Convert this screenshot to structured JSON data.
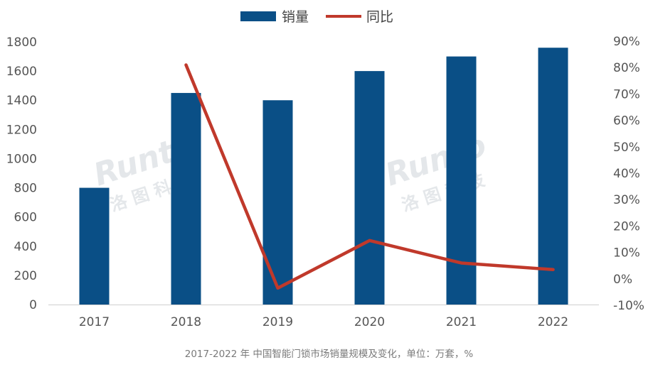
{
  "chart_data": {
    "type": "bar",
    "categories": [
      "2017",
      "2018",
      "2019",
      "2020",
      "2021",
      "2022"
    ],
    "series": [
      {
        "name": "销量",
        "type": "bar",
        "axis": "left",
        "color": "#0a4f86",
        "values": [
          800,
          1450,
          1400,
          1600,
          1700,
          1760
        ]
      },
      {
        "name": "同比",
        "type": "line",
        "axis": "right",
        "color": "#c0392b",
        "values": [
          null,
          81,
          -3.5,
          14.5,
          6,
          3.5
        ]
      }
    ],
    "y_left": {
      "min": 0,
      "max": 1800,
      "step": 200,
      "ticks": [
        "0",
        "200",
        "400",
        "600",
        "800",
        "1000",
        "1200",
        "1400",
        "1600",
        "1800"
      ]
    },
    "y_right": {
      "min": -10,
      "max": 90,
      "step": 10,
      "ticks": [
        "-10%",
        "0%",
        "10%",
        "20%",
        "30%",
        "40%",
        "50%",
        "60%",
        "70%",
        "80%",
        "90%"
      ]
    },
    "legend": {
      "placement": "top-center",
      "items": [
        "销量",
        "同比"
      ]
    },
    "grid": false,
    "caption": "2017-2022 年 中国智能门锁市场销量规模及变化，单位：万套，%",
    "watermark": {
      "brand": "Runto",
      "cn": "洛 图 科 技"
    }
  }
}
